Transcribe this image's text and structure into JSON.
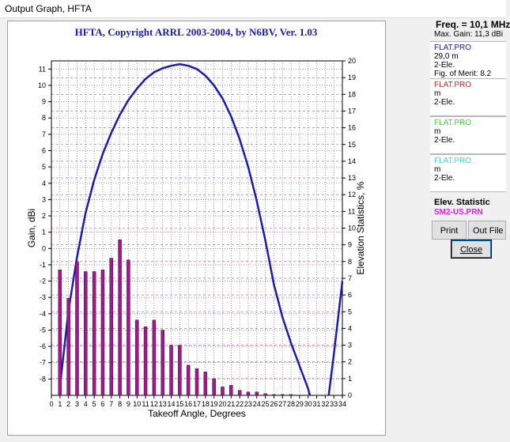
{
  "window": {
    "title": "Output Graph, HFTA"
  },
  "chart_data": {
    "type": "bar",
    "title": "HFTA, Copyright ARRL 2003-2004, by N6BV, Ver. 1.03",
    "xlabel": "Takeoff Angle, Degrees",
    "ylabel": "Gain, dBi",
    "y2label": "Elevation Statistics, %",
    "xlim": [
      0,
      34
    ],
    "ylim": [
      -9,
      11.5
    ],
    "y2lim": [
      0,
      20
    ],
    "x_ticks": [
      0,
      1,
      2,
      3,
      4,
      5,
      6,
      7,
      8,
      9,
      10,
      11,
      12,
      13,
      14,
      15,
      16,
      17,
      18,
      19,
      20,
      21,
      22,
      23,
      24,
      25,
      26,
      27,
      28,
      29,
      30,
      31,
      32,
      33,
      34
    ],
    "y_ticks": [
      -8,
      -7,
      -6,
      -5,
      -4,
      -3,
      -2,
      -1,
      0,
      1,
      2,
      3,
      4,
      5,
      6,
      7,
      8,
      9,
      10,
      11
    ],
    "y2_ticks": [
      0,
      1,
      2,
      3,
      4,
      5,
      6,
      7,
      8,
      9,
      10,
      11,
      12,
      13,
      14,
      15,
      16,
      17,
      18,
      19,
      20
    ],
    "grid": true,
    "series": [
      {
        "name": "FLAT.PRO",
        "kind": "line",
        "axis": "left",
        "color": "#1a1ab5",
        "x": [
          1.05,
          2,
          3,
          4,
          5,
          6,
          7,
          8,
          9,
          10,
          11,
          12,
          13,
          14,
          15,
          16,
          17,
          18,
          19,
          20,
          21,
          22,
          23,
          24,
          25,
          26,
          27,
          28,
          29,
          30,
          30.2
        ],
        "y": [
          -8.2,
          -3.8,
          -0.5,
          2.2,
          4.2,
          5.8,
          7.1,
          8.2,
          9.1,
          9.8,
          10.4,
          10.8,
          11.05,
          11.2,
          11.3,
          11.2,
          11.0,
          10.6,
          10.0,
          9.2,
          8.1,
          6.7,
          5.0,
          2.9,
          0.5,
          -2.2,
          -4.2,
          -5.8,
          -7.2,
          -8.6,
          -9.0
        ]
      },
      {
        "name": "FLAT.PRO",
        "kind": "line",
        "axis": "left",
        "color": "#1a1ab5",
        "x": [
          32.4,
          33,
          34
        ],
        "y": [
          -9.0,
          -6.5,
          -2.0
        ]
      },
      {
        "name": "SM2-US.PRN",
        "kind": "bar",
        "axis": "right",
        "color": "#a01a8c",
        "x": [
          1,
          2,
          3,
          4,
          5,
          6,
          7,
          8,
          9,
          10,
          11,
          12,
          13,
          14,
          15,
          16,
          17,
          18,
          19,
          20,
          21,
          22,
          23,
          24,
          25,
          26,
          27,
          28
        ],
        "values": [
          7.5,
          5.8,
          8.0,
          7.4,
          7.4,
          7.5,
          8.2,
          9.3,
          8.1,
          4.5,
          4.1,
          4.5,
          3.9,
          3.0,
          3.0,
          1.8,
          1.6,
          1.4,
          1.0,
          0.5,
          0.6,
          0.3,
          0.2,
          0.2,
          0.1,
          0.05,
          0.05,
          0.05
        ]
      }
    ]
  },
  "side": {
    "freq": "Freq. = 10,1 MHz",
    "max_gain": "Max. Gain: 11,3 dBi",
    "boxes": [
      {
        "name": "FLAT.PRO",
        "color": "#1a1ab5",
        "height": "29,0 m",
        "elements": "2-Ele.",
        "merit": "Fig. of Merit: 8.2"
      },
      {
        "name": "FLAT.PRO",
        "color": "#e02020",
        "height": " m",
        "elements": "2-Ele."
      },
      {
        "name": "FLAT.PRO",
        "color": "#33d833",
        "height": " m",
        "elements": "2-Ele."
      },
      {
        "name": "FLAT.PRO",
        "color": "#33d8d8",
        "height": " m",
        "elements": "2-Ele."
      }
    ],
    "elev_title": "Elev. Statistic",
    "elev_file": "SM2-US.PRN",
    "elev_color": "#e020e0",
    "print_label": "Print",
    "outfile_label": "Out File",
    "close_label": "Close"
  }
}
